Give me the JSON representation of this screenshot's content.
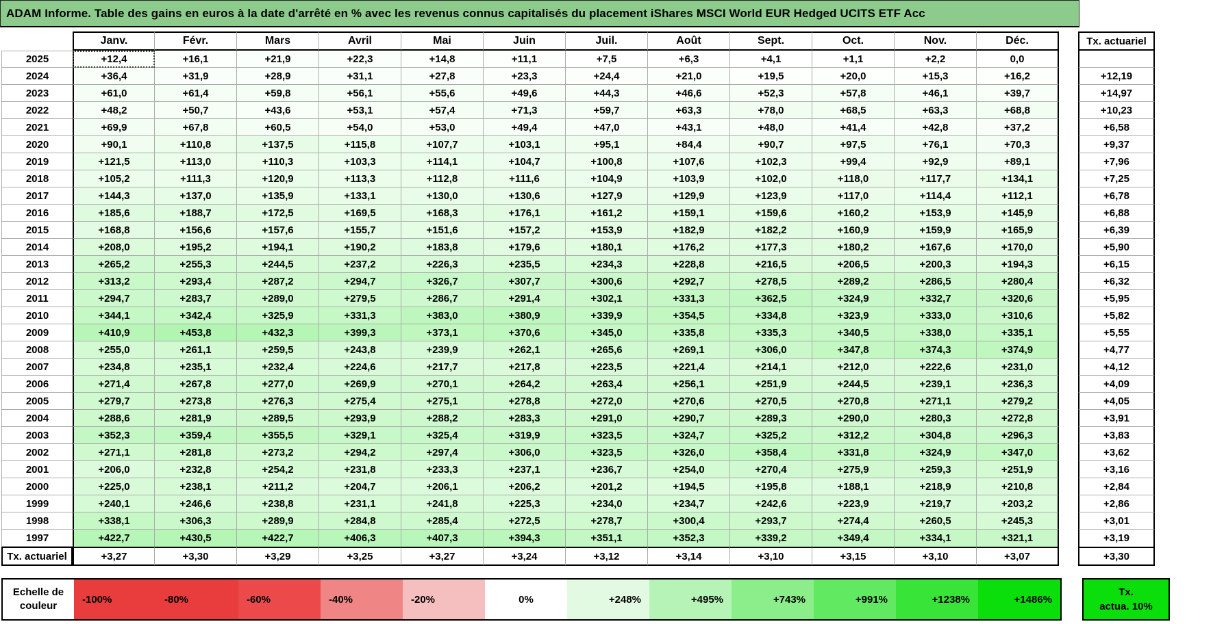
{
  "title": "ADAM Informe. Table des gains en euros à la date d'arrêté en % avec les revenus connus capitalisés du placement iShares MSCI World EUR Hedged UCITS ETF Acc",
  "colors": {
    "title_bg": "#8DCB8D",
    "grid_line": "#ababab",
    "gain_full_green": "#00DF00",
    "gain_scale_max_pct": 1486
  },
  "table": {
    "months": [
      "Janv.",
      "Févr.",
      "Mars",
      "Avril",
      "Mai",
      "Juin",
      "Juil.",
      "Août",
      "Sept.",
      "Oct.",
      "Nov.",
      "Déc."
    ],
    "tx_header": "Tx. actuariel",
    "rows": [
      {
        "year": "2025",
        "values": [
          "+12,4",
          "+16,1",
          "+21,9",
          "+22,3",
          "+14,8",
          "+11,1",
          "+7,5",
          "+6,3",
          "+4,1",
          "+1,1",
          "+2,2",
          "0,0"
        ],
        "tx": ""
      },
      {
        "year": "2024",
        "values": [
          "+36,4",
          "+31,9",
          "+28,9",
          "+31,1",
          "+27,8",
          "+23,3",
          "+24,4",
          "+21,0",
          "+19,5",
          "+20,0",
          "+15,3",
          "+16,2"
        ],
        "tx": "+12,19"
      },
      {
        "year": "2023",
        "values": [
          "+61,0",
          "+61,4",
          "+59,8",
          "+56,1",
          "+55,6",
          "+49,6",
          "+44,3",
          "+46,6",
          "+52,3",
          "+57,8",
          "+46,1",
          "+39,7"
        ],
        "tx": "+14,97"
      },
      {
        "year": "2022",
        "values": [
          "+48,2",
          "+50,7",
          "+43,6",
          "+53,1",
          "+57,4",
          "+71,3",
          "+59,7",
          "+63,3",
          "+78,0",
          "+68,5",
          "+63,3",
          "+68,8"
        ],
        "tx": "+10,23"
      },
      {
        "year": "2021",
        "values": [
          "+69,9",
          "+67,8",
          "+60,5",
          "+54,0",
          "+53,0",
          "+49,4",
          "+47,0",
          "+43,1",
          "+48,0",
          "+41,4",
          "+42,8",
          "+37,2"
        ],
        "tx": "+6,58"
      },
      {
        "year": "2020",
        "values": [
          "+90,1",
          "+110,8",
          "+137,5",
          "+115,8",
          "+107,7",
          "+103,1",
          "+95,1",
          "+84,4",
          "+90,7",
          "+97,5",
          "+76,1",
          "+70,3"
        ],
        "tx": "+9,37"
      },
      {
        "year": "2019",
        "values": [
          "+121,5",
          "+113,0",
          "+110,3",
          "+103,3",
          "+114,1",
          "+104,7",
          "+100,8",
          "+107,6",
          "+102,3",
          "+99,4",
          "+92,9",
          "+89,1"
        ],
        "tx": "+7,96"
      },
      {
        "year": "2018",
        "values": [
          "+105,2",
          "+111,3",
          "+120,9",
          "+113,3",
          "+112,8",
          "+111,6",
          "+104,9",
          "+103,9",
          "+102,0",
          "+118,0",
          "+117,7",
          "+134,1"
        ],
        "tx": "+7,25"
      },
      {
        "year": "2017",
        "values": [
          "+144,3",
          "+137,0",
          "+135,9",
          "+133,1",
          "+130,0",
          "+130,6",
          "+127,9",
          "+129,9",
          "+123,9",
          "+117,0",
          "+114,4",
          "+112,1"
        ],
        "tx": "+6,78"
      },
      {
        "year": "2016",
        "values": [
          "+185,6",
          "+188,7",
          "+172,5",
          "+169,5",
          "+168,3",
          "+176,1",
          "+161,2",
          "+159,1",
          "+159,6",
          "+160,2",
          "+153,9",
          "+145,9"
        ],
        "tx": "+6,88"
      },
      {
        "year": "2015",
        "values": [
          "+168,8",
          "+156,6",
          "+157,6",
          "+155,7",
          "+151,6",
          "+157,2",
          "+153,9",
          "+182,9",
          "+182,2",
          "+160,9",
          "+159,9",
          "+165,9"
        ],
        "tx": "+6,39"
      },
      {
        "year": "2014",
        "values": [
          "+208,0",
          "+195,2",
          "+194,1",
          "+190,2",
          "+183,8",
          "+179,6",
          "+180,1",
          "+176,2",
          "+177,3",
          "+180,2",
          "+167,6",
          "+170,0"
        ],
        "tx": "+5,90"
      },
      {
        "year": "2013",
        "values": [
          "+265,2",
          "+255,3",
          "+244,5",
          "+237,2",
          "+226,3",
          "+235,5",
          "+234,3",
          "+228,8",
          "+216,5",
          "+206,5",
          "+200,3",
          "+194,3"
        ],
        "tx": "+6,15"
      },
      {
        "year": "2012",
        "values": [
          "+313,2",
          "+293,4",
          "+287,2",
          "+294,7",
          "+326,7",
          "+307,7",
          "+300,6",
          "+292,7",
          "+278,5",
          "+289,2",
          "+286,5",
          "+280,4"
        ],
        "tx": "+6,32"
      },
      {
        "year": "2011",
        "values": [
          "+294,7",
          "+283,7",
          "+289,0",
          "+279,5",
          "+286,7",
          "+291,4",
          "+302,1",
          "+331,3",
          "+362,5",
          "+324,9",
          "+332,7",
          "+320,6"
        ],
        "tx": "+5,95"
      },
      {
        "year": "2010",
        "values": [
          "+344,1",
          "+342,4",
          "+325,9",
          "+331,3",
          "+383,0",
          "+380,9",
          "+339,9",
          "+354,5",
          "+334,8",
          "+323,9",
          "+333,0",
          "+310,6"
        ],
        "tx": "+5,82"
      },
      {
        "year": "2009",
        "values": [
          "+410,9",
          "+453,8",
          "+432,3",
          "+399,3",
          "+373,1",
          "+370,6",
          "+345,0",
          "+335,8",
          "+335,3",
          "+340,5",
          "+338,0",
          "+335,1"
        ],
        "tx": "+5,55"
      },
      {
        "year": "2008",
        "values": [
          "+255,0",
          "+261,1",
          "+259,5",
          "+243,8",
          "+239,9",
          "+262,1",
          "+265,6",
          "+269,1",
          "+306,0",
          "+347,8",
          "+374,3",
          "+374,9"
        ],
        "tx": "+4,77"
      },
      {
        "year": "2007",
        "values": [
          "+234,8",
          "+235,1",
          "+232,4",
          "+224,6",
          "+217,7",
          "+217,8",
          "+223,5",
          "+221,4",
          "+214,1",
          "+212,0",
          "+222,6",
          "+231,0"
        ],
        "tx": "+4,12"
      },
      {
        "year": "2006",
        "values": [
          "+271,4",
          "+267,8",
          "+277,0",
          "+269,9",
          "+270,1",
          "+264,2",
          "+263,4",
          "+256,1",
          "+251,9",
          "+244,5",
          "+239,1",
          "+236,3"
        ],
        "tx": "+4,09"
      },
      {
        "year": "2005",
        "values": [
          "+279,7",
          "+273,8",
          "+276,3",
          "+275,4",
          "+275,1",
          "+278,8",
          "+272,0",
          "+270,6",
          "+270,5",
          "+270,8",
          "+271,1",
          "+279,2"
        ],
        "tx": "+4,05"
      },
      {
        "year": "2004",
        "values": [
          "+288,6",
          "+281,9",
          "+289,5",
          "+293,9",
          "+288,2",
          "+283,3",
          "+291,0",
          "+290,7",
          "+289,3",
          "+290,0",
          "+280,3",
          "+272,8"
        ],
        "tx": "+3,91"
      },
      {
        "year": "2003",
        "values": [
          "+352,3",
          "+359,4",
          "+355,5",
          "+329,1",
          "+325,4",
          "+319,9",
          "+323,5",
          "+324,7",
          "+325,2",
          "+312,2",
          "+304,8",
          "+296,3"
        ],
        "tx": "+3,83"
      },
      {
        "year": "2002",
        "values": [
          "+271,1",
          "+281,8",
          "+273,2",
          "+294,2",
          "+297,4",
          "+306,0",
          "+323,5",
          "+326,0",
          "+358,4",
          "+331,8",
          "+324,9",
          "+347,0"
        ],
        "tx": "+3,62"
      },
      {
        "year": "2001",
        "values": [
          "+206,0",
          "+232,8",
          "+254,2",
          "+231,8",
          "+233,3",
          "+237,1",
          "+236,7",
          "+254,0",
          "+270,4",
          "+275,9",
          "+259,3",
          "+251,9"
        ],
        "tx": "+3,16"
      },
      {
        "year": "2000",
        "values": [
          "+225,0",
          "+238,1",
          "+211,2",
          "+204,7",
          "+206,1",
          "+206,2",
          "+201,2",
          "+194,5",
          "+195,8",
          "+188,1",
          "+218,9",
          "+210,8"
        ],
        "tx": "+2,84"
      },
      {
        "year": "1999",
        "values": [
          "+240,1",
          "+246,6",
          "+238,8",
          "+231,1",
          "+241,8",
          "+225,3",
          "+234,0",
          "+234,7",
          "+242,6",
          "+223,9",
          "+219,7",
          "+203,2"
        ],
        "tx": "+2,86"
      },
      {
        "year": "1998",
        "values": [
          "+338,1",
          "+306,3",
          "+289,9",
          "+284,8",
          "+285,4",
          "+272,5",
          "+278,7",
          "+300,4",
          "+293,7",
          "+274,4",
          "+260,5",
          "+245,3"
        ],
        "tx": "+3,01"
      },
      {
        "year": "1997",
        "values": [
          "+422,7",
          "+430,5",
          "+422,7",
          "+406,3",
          "+407,3",
          "+394,3",
          "+351,1",
          "+352,3",
          "+339,2",
          "+349,4",
          "+334,1",
          "+321,1"
        ],
        "tx": "+3,19"
      }
    ],
    "footer": {
      "label": "Tx. actuariel",
      "values": [
        "+3,27",
        "+3,30",
        "+3,29",
        "+3,25",
        "+3,27",
        "+3,24",
        "+3,12",
        "+3,14",
        "+3,10",
        "+3,15",
        "+3,10",
        "+3,07"
      ],
      "tx": "+3,30"
    }
  },
  "legend": {
    "label_line1": "Echelle de",
    "label_line2": "couleur",
    "items": [
      {
        "label": "-100%",
        "color": "#E93C3C",
        "align": "left"
      },
      {
        "label": "-80%",
        "color": "#E93C3C",
        "align": "left"
      },
      {
        "label": "-60%",
        "color": "#EC4A4A",
        "align": "left"
      },
      {
        "label": "-40%",
        "color": "#F08585",
        "align": "left"
      },
      {
        "label": "-20%",
        "color": "#F6BFBF",
        "align": "left"
      },
      {
        "label": "0%",
        "color": "#FFFFFF",
        "align": "center"
      },
      {
        "label": "+248%",
        "color": "#E2F9E2",
        "align": "right"
      },
      {
        "label": "+495%",
        "color": "#B6F3B6",
        "align": "right"
      },
      {
        "label": "+743%",
        "color": "#8BEE8B",
        "align": "right"
      },
      {
        "label": "+991%",
        "color": "#62E962",
        "align": "right"
      },
      {
        "label": "+1238%",
        "color": "#38E438",
        "align": "right"
      },
      {
        "label": "+1486%",
        "color": "#0BDF0B",
        "align": "right"
      }
    ],
    "tx_box": {
      "line1": "Tx.",
      "line2": "actua. 10%",
      "color": "#0BDF0B"
    }
  }
}
